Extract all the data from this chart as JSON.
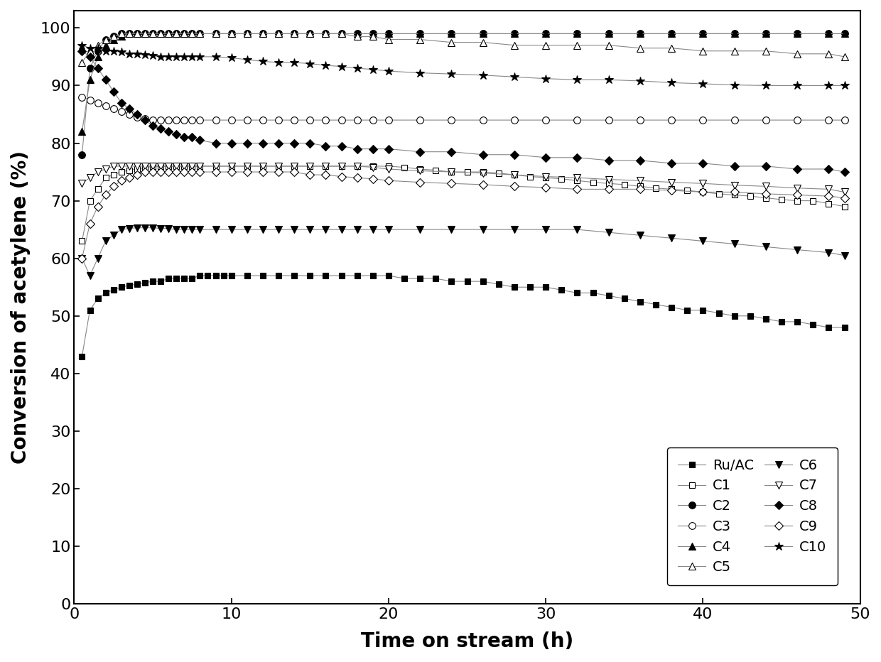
{
  "xlabel": "Time on stream (h)",
  "ylabel": "Conversion of acetylene (%)",
  "xlim": [
    0,
    50
  ],
  "ylim": [
    0,
    103
  ],
  "yticks": [
    0,
    10,
    20,
    30,
    40,
    50,
    60,
    70,
    80,
    90,
    100
  ],
  "xticks": [
    0,
    10,
    20,
    30,
    40,
    50
  ],
  "line_color": "#aaaaaa",
  "series": {
    "Ru/AC": {
      "marker": "s",
      "filled": true,
      "x": [
        0.5,
        1,
        1.5,
        2,
        2.5,
        3,
        3.5,
        4,
        4.5,
        5,
        5.5,
        6,
        6.5,
        7,
        7.5,
        8,
        8.5,
        9,
        9.5,
        10,
        11,
        12,
        13,
        14,
        15,
        16,
        17,
        18,
        19,
        20,
        21,
        22,
        23,
        24,
        25,
        26,
        27,
        28,
        29,
        30,
        31,
        32,
        33,
        34,
        35,
        36,
        37,
        38,
        39,
        40,
        41,
        42,
        43,
        44,
        45,
        46,
        47,
        48,
        49
      ],
      "y": [
        43,
        51,
        53,
        54,
        54.5,
        55,
        55.3,
        55.5,
        55.8,
        56,
        56,
        56.5,
        56.5,
        56.5,
        56.5,
        57,
        57,
        57,
        57,
        57,
        57,
        57,
        57,
        57,
        57,
        57,
        57,
        57,
        57,
        57,
        56.5,
        56.5,
        56.5,
        56,
        56,
        56,
        55.5,
        55,
        55,
        55,
        54.5,
        54,
        54,
        53.5,
        53,
        52.5,
        52,
        51.5,
        51,
        51,
        50.5,
        50,
        50,
        49.5,
        49,
        49,
        48.5,
        48,
        48
      ]
    },
    "C1": {
      "marker": "s",
      "filled": false,
      "x": [
        0.5,
        1,
        1.5,
        2,
        2.5,
        3,
        3.5,
        4,
        4.5,
        5,
        5.5,
        6,
        6.5,
        7,
        7.5,
        8,
        9,
        10,
        11,
        12,
        13,
        14,
        15,
        16,
        17,
        18,
        19,
        20,
        21,
        22,
        23,
        24,
        25,
        26,
        27,
        28,
        29,
        30,
        31,
        32,
        33,
        34,
        35,
        36,
        37,
        38,
        39,
        40,
        41,
        42,
        43,
        44,
        45,
        46,
        47,
        48,
        49
      ],
      "y": [
        63,
        70,
        72,
        74,
        74.5,
        75,
        75.3,
        75.5,
        75.7,
        76,
        76,
        76,
        76,
        76,
        76,
        76,
        76,
        76,
        76,
        76,
        76,
        76,
        76,
        76,
        76,
        76,
        76,
        76,
        75.8,
        75.5,
        75.3,
        75,
        75,
        75,
        74.8,
        74.5,
        74.2,
        74,
        73.8,
        73.5,
        73.2,
        73,
        72.8,
        72.5,
        72.2,
        72,
        71.8,
        71.5,
        71.2,
        71,
        70.8,
        70.5,
        70.2,
        70,
        70,
        69.5,
        69
      ]
    },
    "C2": {
      "marker": "o",
      "filled": true,
      "x": [
        0.5,
        1,
        1.5,
        2,
        2.5,
        3,
        3.5,
        4,
        4.5,
        5,
        5.5,
        6,
        6.5,
        7,
        7.5,
        8,
        9,
        10,
        11,
        12,
        13,
        14,
        15,
        16,
        17,
        18,
        19,
        20,
        22,
        24,
        26,
        28,
        30,
        32,
        34,
        36,
        38,
        40,
        42,
        44,
        46,
        48,
        49
      ],
      "y": [
        78,
        93,
        96,
        98,
        98.5,
        99,
        99,
        99,
        99,
        99,
        99,
        99,
        99,
        99,
        99,
        99,
        99,
        99,
        99,
        99,
        99,
        99,
        99,
        99,
        99,
        99,
        99,
        99,
        99,
        99,
        99,
        99,
        99,
        99,
        99,
        99,
        99,
        99,
        99,
        99,
        99,
        99,
        99
      ]
    },
    "C3": {
      "marker": "o",
      "filled": false,
      "x": [
        0.5,
        1,
        1.5,
        2,
        2.5,
        3,
        3.5,
        4,
        4.5,
        5,
        5.5,
        6,
        6.5,
        7,
        7.5,
        8,
        9,
        10,
        11,
        12,
        13,
        14,
        15,
        16,
        17,
        18,
        19,
        20,
        22,
        24,
        26,
        28,
        30,
        32,
        34,
        36,
        38,
        40,
        42,
        44,
        46,
        48,
        49
      ],
      "y": [
        88,
        87.5,
        87,
        86.5,
        86,
        85.5,
        85,
        84.5,
        84.3,
        84,
        84,
        84,
        84,
        84,
        84,
        84,
        84,
        84,
        84,
        84,
        84,
        84,
        84,
        84,
        84,
        84,
        84,
        84,
        84,
        84,
        84,
        84,
        84,
        84,
        84,
        84,
        84,
        84,
        84,
        84,
        84,
        84,
        84
      ]
    },
    "C4": {
      "marker": "^",
      "filled": true,
      "x": [
        0.5,
        1,
        1.5,
        2,
        2.5,
        3,
        3.5,
        4,
        4.5,
        5,
        5.5,
        6,
        6.5,
        7,
        7.5,
        8,
        9,
        10,
        11,
        12,
        13,
        14,
        15,
        16,
        17,
        18,
        19,
        20,
        22,
        24,
        26,
        28,
        30,
        32,
        34,
        36,
        38,
        40,
        42,
        44,
        46,
        48,
        49
      ],
      "y": [
        82,
        91,
        95,
        97,
        98,
        98.5,
        99,
        99,
        99,
        99,
        99,
        99,
        99,
        99,
        99,
        99,
        99,
        99,
        99,
        99,
        99,
        99,
        99,
        99,
        99,
        99,
        99,
        99,
        99,
        99,
        99,
        99,
        99,
        99,
        99,
        99,
        99,
        99,
        99,
        99,
        99,
        99,
        99
      ]
    },
    "C5": {
      "marker": "^",
      "filled": false,
      "x": [
        0.5,
        1,
        1.5,
        2,
        2.5,
        3,
        3.5,
        4,
        4.5,
        5,
        5.5,
        6,
        6.5,
        7,
        7.5,
        8,
        9,
        10,
        11,
        12,
        13,
        14,
        15,
        16,
        17,
        18,
        19,
        20,
        22,
        24,
        26,
        28,
        30,
        32,
        34,
        36,
        38,
        40,
        42,
        44,
        46,
        48,
        49
      ],
      "y": [
        94,
        96,
        97,
        98,
        98.5,
        99,
        99,
        99,
        99,
        99,
        99,
        99,
        99,
        99,
        99,
        99,
        99,
        99,
        99,
        99,
        99,
        99,
        99,
        99,
        99,
        98.5,
        98.5,
        98,
        98,
        97.5,
        97.5,
        97,
        97,
        97,
        97,
        96.5,
        96.5,
        96,
        96,
        96,
        95.5,
        95.5,
        95
      ]
    },
    "C6": {
      "marker": "v",
      "filled": true,
      "x": [
        0.5,
        1,
        1.5,
        2,
        2.5,
        3,
        3.5,
        4,
        4.5,
        5,
        5.5,
        6,
        6.5,
        7,
        7.5,
        8,
        9,
        10,
        11,
        12,
        13,
        14,
        15,
        16,
        17,
        18,
        19,
        20,
        22,
        24,
        26,
        28,
        30,
        32,
        34,
        36,
        38,
        40,
        42,
        44,
        46,
        48,
        49
      ],
      "y": [
        60,
        57,
        60,
        63,
        64,
        65,
        65.2,
        65.3,
        65.3,
        65.3,
        65.2,
        65.2,
        65,
        65,
        65,
        65,
        65,
        65,
        65,
        65,
        65,
        65,
        65,
        65,
        65,
        65,
        65,
        65,
        65,
        65,
        65,
        65,
        65,
        65,
        64.5,
        64,
        63.5,
        63,
        62.5,
        62,
        61.5,
        61,
        60.5
      ]
    },
    "C7": {
      "marker": "v",
      "filled": false,
      "x": [
        0.5,
        1,
        1.5,
        2,
        2.5,
        3,
        3.5,
        4,
        4.5,
        5,
        5.5,
        6,
        6.5,
        7,
        7.5,
        8,
        9,
        10,
        11,
        12,
        13,
        14,
        15,
        16,
        17,
        18,
        19,
        20,
        22,
        24,
        26,
        28,
        30,
        32,
        34,
        36,
        38,
        40,
        42,
        44,
        46,
        48,
        49
      ],
      "y": [
        73,
        74,
        75,
        75.5,
        76,
        76,
        76,
        76,
        76,
        76,
        76,
        76,
        76,
        76,
        76,
        76,
        76,
        76,
        76,
        76,
        76,
        76,
        76,
        76,
        76,
        76,
        75.8,
        75.5,
        75.2,
        75,
        74.8,
        74.5,
        74.2,
        74,
        73.7,
        73.5,
        73.2,
        73,
        72.7,
        72.5,
        72.2,
        72,
        71.5
      ]
    },
    "C8": {
      "marker": "D",
      "filled": true,
      "x": [
        0.5,
        1,
        1.5,
        2,
        2.5,
        3,
        3.5,
        4,
        4.5,
        5,
        5.5,
        6,
        6.5,
        7,
        7.5,
        8,
        9,
        10,
        11,
        12,
        13,
        14,
        15,
        16,
        17,
        18,
        19,
        20,
        22,
        24,
        26,
        28,
        30,
        32,
        34,
        36,
        38,
        40,
        42,
        44,
        46,
        48,
        49
      ],
      "y": [
        96,
        95,
        93,
        91,
        89,
        87,
        86,
        85,
        84,
        83,
        82.5,
        82,
        81.5,
        81,
        81,
        80.5,
        80,
        80,
        80,
        80,
        80,
        80,
        80,
        79.5,
        79.5,
        79,
        79,
        79,
        78.5,
        78.5,
        78,
        78,
        77.5,
        77.5,
        77,
        77,
        76.5,
        76.5,
        76,
        76,
        75.5,
        75.5,
        75
      ]
    },
    "C9": {
      "marker": "D",
      "filled": false,
      "x": [
        0.5,
        1,
        1.5,
        2,
        2.5,
        3,
        3.5,
        4,
        4.5,
        5,
        5.5,
        6,
        6.5,
        7,
        7.5,
        8,
        9,
        10,
        11,
        12,
        13,
        14,
        15,
        16,
        17,
        18,
        19,
        20,
        22,
        24,
        26,
        28,
        30,
        32,
        34,
        36,
        38,
        40,
        42,
        44,
        46,
        48,
        49
      ],
      "y": [
        60,
        66,
        69,
        71,
        72.5,
        73.5,
        74,
        74.5,
        75,
        75,
        75,
        75,
        75,
        75,
        75,
        75,
        75,
        75,
        75,
        75,
        75,
        75,
        74.5,
        74.5,
        74.2,
        74,
        73.8,
        73.5,
        73.2,
        73,
        72.8,
        72.5,
        72.3,
        72,
        72,
        72,
        71.8,
        71.5,
        71.5,
        71.2,
        71,
        70.8,
        70.5
      ]
    },
    "C10": {
      "marker": "*",
      "filled": true,
      "x": [
        0.5,
        1,
        1.5,
        2,
        2.5,
        3,
        3.5,
        4,
        4.5,
        5,
        5.5,
        6,
        6.5,
        7,
        7.5,
        8,
        9,
        10,
        11,
        12,
        13,
        14,
        15,
        16,
        17,
        18,
        19,
        20,
        22,
        24,
        26,
        28,
        30,
        32,
        34,
        36,
        38,
        40,
        42,
        44,
        46,
        48,
        49
      ],
      "y": [
        97,
        96.5,
        96.5,
        96,
        96,
        95.8,
        95.5,
        95.5,
        95.3,
        95.2,
        95,
        95,
        95,
        95,
        95,
        95,
        95,
        94.8,
        94.5,
        94.2,
        94,
        94,
        93.8,
        93.5,
        93.3,
        93,
        92.8,
        92.5,
        92.2,
        92,
        91.8,
        91.5,
        91.2,
        91,
        91,
        90.8,
        90.5,
        90.3,
        90.1,
        90,
        90,
        90,
        90
      ]
    }
  },
  "legend_order": [
    "Ru/AC",
    "C1",
    "C2",
    "C3",
    "C4",
    "C5",
    "C6",
    "C7",
    "C8",
    "C9",
    "C10"
  ],
  "legend_col1": [
    "Ru/AC",
    "C2",
    "C4",
    "C6",
    "C8",
    "C10"
  ],
  "legend_col2": [
    "C1",
    "C3",
    "C5",
    "C7",
    "C9"
  ]
}
